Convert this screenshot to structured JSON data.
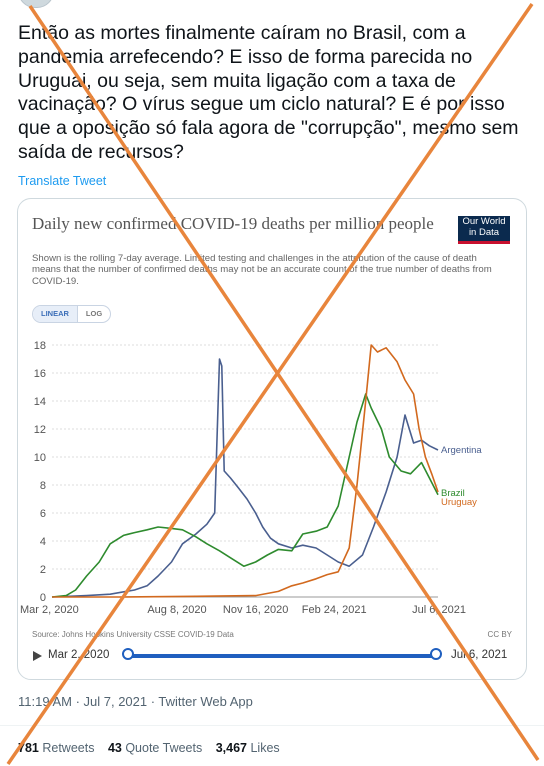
{
  "tweet": {
    "text": "Então as mortes finalmente caíram no Brasil, com a pandemia arrefecendo? E isso de forma parecida no Uruguai, ou seja, sem muita ligação com a taxa de vacinação? O vírus segue um ciclo natural? E é por isso que a oposição só fala agora de \"corrupção\", mesmo sem saída de recursos?",
    "translate_label": "Translate Tweet",
    "timestamp": "11:19 AM · Jul 7, 2021 · Twitter Web App",
    "stats": {
      "retweets_count": "781",
      "retweets_label": "Retweets",
      "quotes_count": "43",
      "quotes_label": "Quote Tweets",
      "likes_count": "3,467",
      "likes_label": "Likes"
    }
  },
  "card": {
    "title": "Daily new confirmed COVID-19 deaths per million people",
    "subtitle": "Shown is the rolling 7-day average. Limited testing and challenges in the attribution of the cause of death means that the number of confirmed deaths may not be an accurate count of the true number of deaths from COVID-19.",
    "logo_line1": "Our World",
    "logo_line2": "in Data",
    "scale_linear": "LINEAR",
    "scale_log": "LOG",
    "source": "Source: Johns Hopkins University CSSE COVID-19 Data",
    "license": "CC BY",
    "timeline_start": "Mar 2, 2020",
    "timeline_end": "Jul 6, 2021"
  },
  "overlay": {
    "color": "#e8853c",
    "meaning": "cross-out"
  },
  "chart_data": {
    "type": "line",
    "title": "Daily new confirmed COVID-19 deaths per million people",
    "xlabel": "",
    "ylabel": "",
    "ylim": [
      0,
      18
    ],
    "yticks": [
      0,
      2,
      4,
      6,
      8,
      10,
      12,
      14,
      16,
      18
    ],
    "xticks": [
      "Mar 2, 2020",
      "Aug 8, 2020",
      "Nov 16, 2020",
      "Feb 24, 2021",
      "Jul 6, 2021"
    ],
    "grid": true,
    "legend": "right-end-labels",
    "series": [
      {
        "name": "Argentina",
        "color": "#4a5f8f",
        "points": [
          [
            "2020-03-02",
            0
          ],
          [
            "2020-04-15",
            0.1
          ],
          [
            "2020-05-15",
            0.2
          ],
          [
            "2020-06-15",
            0.5
          ],
          [
            "2020-07-01",
            0.8
          ],
          [
            "2020-07-15",
            1.5
          ],
          [
            "2020-08-01",
            2.5
          ],
          [
            "2020-08-15",
            3.8
          ],
          [
            "2020-09-01",
            4.5
          ],
          [
            "2020-09-15",
            5.2
          ],
          [
            "2020-09-25",
            6
          ],
          [
            "2020-10-01",
            17
          ],
          [
            "2020-10-04",
            16.5
          ],
          [
            "2020-10-07",
            9
          ],
          [
            "2020-10-15",
            8.5
          ],
          [
            "2020-10-25",
            7.8
          ],
          [
            "2020-11-05",
            7
          ],
          [
            "2020-11-16",
            6
          ],
          [
            "2020-11-25",
            5
          ],
          [
            "2020-12-05",
            4.2
          ],
          [
            "2020-12-15",
            3.8
          ],
          [
            "2021-01-01",
            3.5
          ],
          [
            "2021-01-15",
            3.7
          ],
          [
            "2021-02-01",
            3.5
          ],
          [
            "2021-02-15",
            3
          ],
          [
            "2021-03-01",
            2.5
          ],
          [
            "2021-03-15",
            2.2
          ],
          [
            "2021-04-01",
            3
          ],
          [
            "2021-04-15",
            5
          ],
          [
            "2021-05-01",
            7.5
          ],
          [
            "2021-05-15",
            10
          ],
          [
            "2021-05-25",
            13
          ],
          [
            "2021-06-05",
            11
          ],
          [
            "2021-06-15",
            11.2
          ],
          [
            "2021-06-25",
            10.8
          ],
          [
            "2021-07-06",
            10.5
          ]
        ]
      },
      {
        "name": "Brazil",
        "color": "#2e8b2e",
        "points": [
          [
            "2020-03-02",
            0
          ],
          [
            "2020-03-20",
            0.1
          ],
          [
            "2020-04-01",
            0.5
          ],
          [
            "2020-04-15",
            1.5
          ],
          [
            "2020-05-01",
            2.5
          ],
          [
            "2020-05-15",
            3.8
          ],
          [
            "2020-06-01",
            4.4
          ],
          [
            "2020-06-15",
            4.6
          ],
          [
            "2020-07-01",
            4.8
          ],
          [
            "2020-07-15",
            5
          ],
          [
            "2020-08-01",
            4.9
          ],
          [
            "2020-08-15",
            4.8
          ],
          [
            "2020-09-01",
            4.3
          ],
          [
            "2020-09-15",
            3.8
          ],
          [
            "2020-10-01",
            3.3
          ],
          [
            "2020-10-15",
            2.8
          ],
          [
            "2020-11-01",
            2.2
          ],
          [
            "2020-11-16",
            2.5
          ],
          [
            "2020-12-01",
            3
          ],
          [
            "2020-12-15",
            3.4
          ],
          [
            "2021-01-01",
            3.3
          ],
          [
            "2021-01-15",
            4.5
          ],
          [
            "2021-02-01",
            4.7
          ],
          [
            "2021-02-15",
            5
          ],
          [
            "2021-03-01",
            6.5
          ],
          [
            "2021-03-15",
            10
          ],
          [
            "2021-03-25",
            12.5
          ],
          [
            "2021-04-05",
            14.5
          ],
          [
            "2021-04-12",
            13.5
          ],
          [
            "2021-04-25",
            12
          ],
          [
            "2021-05-05",
            10
          ],
          [
            "2021-05-20",
            9
          ],
          [
            "2021-06-01",
            8.8
          ],
          [
            "2021-06-15",
            9.6
          ],
          [
            "2021-06-25",
            8.5
          ],
          [
            "2021-07-06",
            7.3
          ]
        ]
      },
      {
        "name": "Uruguay",
        "color": "#d2691e",
        "points": [
          [
            "2020-03-02",
            0
          ],
          [
            "2020-06-01",
            0
          ],
          [
            "2020-09-01",
            0.05
          ],
          [
            "2020-11-16",
            0.1
          ],
          [
            "2020-12-15",
            0.4
          ],
          [
            "2021-01-01",
            0.8
          ],
          [
            "2021-01-15",
            1
          ],
          [
            "2021-02-01",
            1.3
          ],
          [
            "2021-02-15",
            1.6
          ],
          [
            "2021-03-01",
            1.8
          ],
          [
            "2021-03-15",
            3.5
          ],
          [
            "2021-03-25",
            8
          ],
          [
            "2021-04-05",
            14
          ],
          [
            "2021-04-12",
            18
          ],
          [
            "2021-04-20",
            17.5
          ],
          [
            "2021-05-01",
            17.8
          ],
          [
            "2021-05-15",
            16.8
          ],
          [
            "2021-05-25",
            15.5
          ],
          [
            "2021-06-05",
            14.5
          ],
          [
            "2021-06-12",
            12
          ],
          [
            "2021-06-20",
            10
          ],
          [
            "2021-06-28",
            8.8
          ],
          [
            "2021-07-06",
            7.5
          ]
        ]
      }
    ]
  }
}
